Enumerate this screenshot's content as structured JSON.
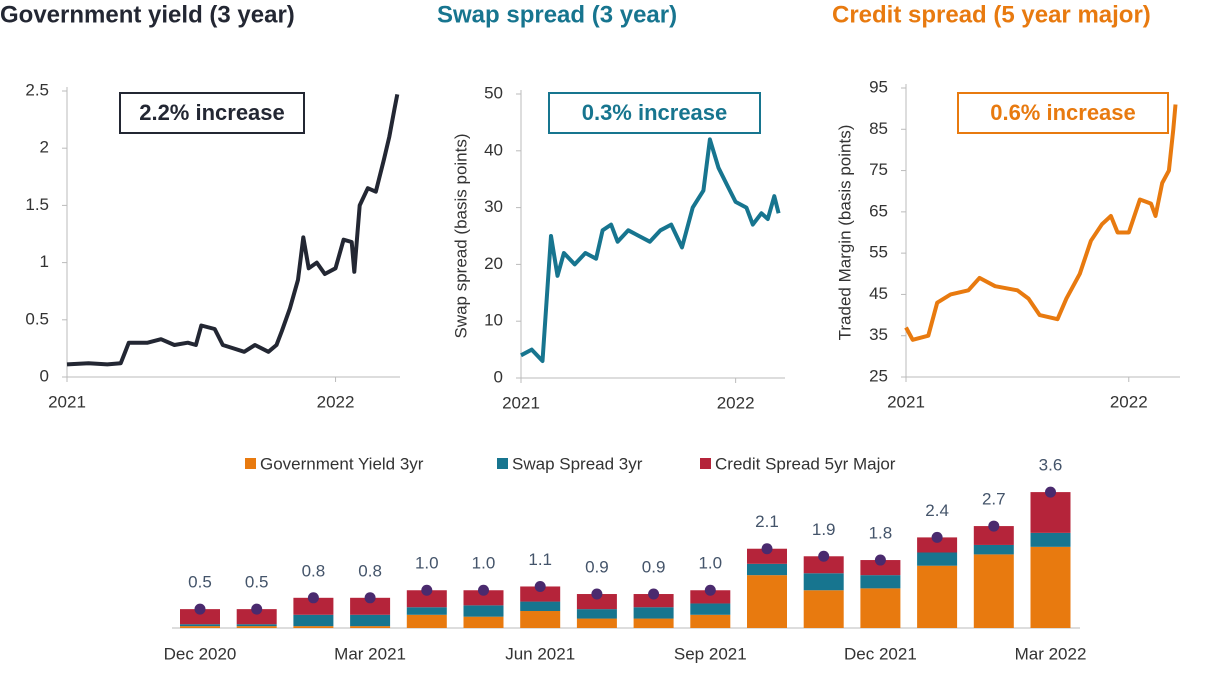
{
  "chart_data": [
    {
      "type": "line",
      "title": "Government yield (3 year)",
      "color": "#232733",
      "annotation": "2.2%  increase",
      "x": [
        2021.0,
        2021.08,
        2021.15,
        2021.2,
        2021.23,
        2021.3,
        2021.35,
        2021.4,
        2021.45,
        2021.48,
        2021.5,
        2021.55,
        2021.58,
        2021.62,
        2021.66,
        2021.7,
        2021.75,
        2021.78,
        2021.8,
        2021.83,
        2021.86,
        2021.88,
        2021.9,
        2021.93,
        2021.96,
        2022.0,
        2022.03,
        2022.06,
        2022.07,
        2022.09,
        2022.12,
        2022.15,
        2022.18,
        2022.2,
        2022.22,
        2022.23
      ],
      "values": [
        0.11,
        0.12,
        0.11,
        0.12,
        0.3,
        0.3,
        0.33,
        0.28,
        0.3,
        0.28,
        0.45,
        0.42,
        0.28,
        0.25,
        0.22,
        0.28,
        0.22,
        0.28,
        0.4,
        0.6,
        0.85,
        1.22,
        0.95,
        1.0,
        0.9,
        0.95,
        1.2,
        1.18,
        0.92,
        1.5,
        1.65,
        1.62,
        1.9,
        2.1,
        2.35,
        2.47
      ],
      "xlim": [
        2021,
        2022.24
      ],
      "xticks": [
        2021,
        2022
      ],
      "ylim": [
        0,
        2.5
      ],
      "yticks": [
        0.0,
        0.5,
        1.0,
        1.5,
        2.0,
        2.5
      ]
    },
    {
      "type": "line",
      "title": "Swap spread (3 year)",
      "color": "#17758f",
      "annotation": "0.3%  increase",
      "ylabel": "Swap spread (basis points)",
      "x": [
        2021.0,
        2021.05,
        2021.1,
        2021.14,
        2021.17,
        2021.2,
        2021.25,
        2021.3,
        2021.35,
        2021.38,
        2021.42,
        2021.45,
        2021.5,
        2021.55,
        2021.6,
        2021.65,
        2021.7,
        2021.75,
        2021.8,
        2021.85,
        2021.88,
        2021.92,
        2021.96,
        2022.0,
        2022.05,
        2022.08,
        2022.12,
        2022.15,
        2022.18,
        2022.2
      ],
      "values": [
        4,
        5,
        3,
        25,
        18,
        22,
        20,
        22,
        21,
        26,
        27,
        24,
        26,
        25,
        24,
        26,
        27,
        23,
        30,
        33,
        42,
        37,
        34,
        31,
        30,
        27,
        29,
        28,
        32,
        29
      ],
      "xlim": [
        2021,
        2022.23
      ],
      "xticks": [
        2021,
        2022
      ],
      "ylim": [
        0,
        50
      ],
      "yticks": [
        0,
        10,
        20,
        30,
        40,
        50
      ]
    },
    {
      "type": "line",
      "title": "Credit spread (5 year major)",
      "color": "#e87a0f",
      "annotation": "0.6%  increase",
      "ylabel": "Traded Margin (basis points)",
      "x": [
        2021.0,
        2021.03,
        2021.1,
        2021.14,
        2021.2,
        2021.28,
        2021.33,
        2021.4,
        2021.5,
        2021.55,
        2021.6,
        2021.68,
        2021.72,
        2021.78,
        2021.83,
        2021.88,
        2021.92,
        2021.95,
        2022.0,
        2022.05,
        2022.1,
        2022.12,
        2022.15,
        2022.18,
        2022.2,
        2022.21
      ],
      "values": [
        37,
        34,
        35,
        43,
        45,
        46,
        49,
        47,
        46,
        44,
        40,
        39,
        44,
        50,
        58,
        62,
        64,
        60,
        60,
        68,
        67,
        64,
        72,
        75,
        85,
        91
      ],
      "xlim": [
        2021,
        2022.23
      ],
      "xticks": [
        2021,
        2022
      ],
      "ylim": [
        25,
        95
      ],
      "yticks": [
        25,
        35,
        45,
        55,
        65,
        75,
        85,
        95
      ]
    },
    {
      "type": "stacked_bar",
      "categories": [
        "Dec 2020",
        null,
        null,
        "Mar 2021",
        null,
        null,
        "Jun 2021",
        null,
        null,
        "Sep 2021",
        null,
        null,
        "Dec 2021",
        null,
        null,
        "Mar 2022"
      ],
      "series": [
        {
          "name": "Government Yield 3yr",
          "color": "#e87a0f",
          "values": [
            0.05,
            0.05,
            0.05,
            0.05,
            0.35,
            0.3,
            0.45,
            0.25,
            0.25,
            0.35,
            1.4,
            1.0,
            1.05,
            1.65,
            1.95,
            2.15
          ]
        },
        {
          "name": "Swap Spread 3yr",
          "color": "#17758f",
          "values": [
            0.05,
            0.05,
            0.3,
            0.3,
            0.2,
            0.3,
            0.25,
            0.25,
            0.3,
            0.3,
            0.3,
            0.45,
            0.35,
            0.35,
            0.25,
            0.37
          ]
        },
        {
          "name": "Credit Spread 5yr Major",
          "color": "#b5243a",
          "values": [
            0.4,
            0.4,
            0.45,
            0.45,
            0.45,
            0.4,
            0.4,
            0.4,
            0.35,
            0.35,
            0.4,
            0.45,
            0.4,
            0.4,
            0.5,
            1.08
          ]
        }
      ],
      "totals": [
        0.5,
        0.5,
        0.8,
        0.8,
        1.0,
        1.0,
        1.1,
        0.9,
        0.9,
        1.0,
        2.1,
        1.9,
        1.8,
        2.4,
        2.7,
        3.6
      ],
      "total_labels": [
        "0.5",
        "0.5",
        "0.8",
        "0.8",
        "1.0",
        "1.0",
        "1.1",
        "0.9",
        "0.9",
        "1.0",
        "2.1",
        "1.9",
        "1.8",
        "2.4",
        "2.7",
        "3.6"
      ],
      "total_color": "#4a2a6e",
      "ylim": [
        0,
        4
      ]
    }
  ]
}
